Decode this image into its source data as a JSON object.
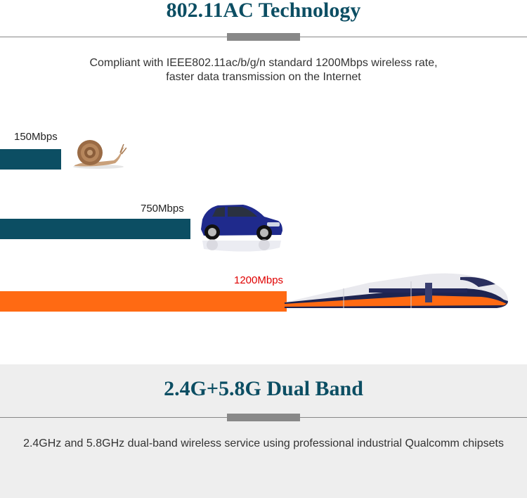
{
  "section1": {
    "title": "802.11AC Technology",
    "description_line1": "Compliant with IEEE802.11ac/b/g/n standard 1200Mbps wireless rate,",
    "description_line2": "faster data transmission on the Internet"
  },
  "speeds": [
    {
      "label": "150Mbps",
      "value": 150,
      "color": "#0c4e63",
      "label_color": "#222222",
      "icon": "snail-icon"
    },
    {
      "label": "750Mbps",
      "value": 750,
      "color": "#0c4e63",
      "label_color": "#222222",
      "icon": "car-icon"
    },
    {
      "label": "1200Mbps",
      "value": 1200,
      "color": "#ff6a13",
      "label_color": "#e00000",
      "icon": "bullet-train-icon"
    }
  ],
  "section2": {
    "title": "2.4G+5.8G Dual Band",
    "description": "2.4GHz and 5.8GHz dual-band wireless service using professional industrial Qualcomm chipsets"
  },
  "colors": {
    "title": "#0c4e63",
    "bar_blue": "#0c4e63",
    "bar_orange": "#ff6a13",
    "divider": "#888888",
    "section2_bg": "#eeeeee"
  }
}
